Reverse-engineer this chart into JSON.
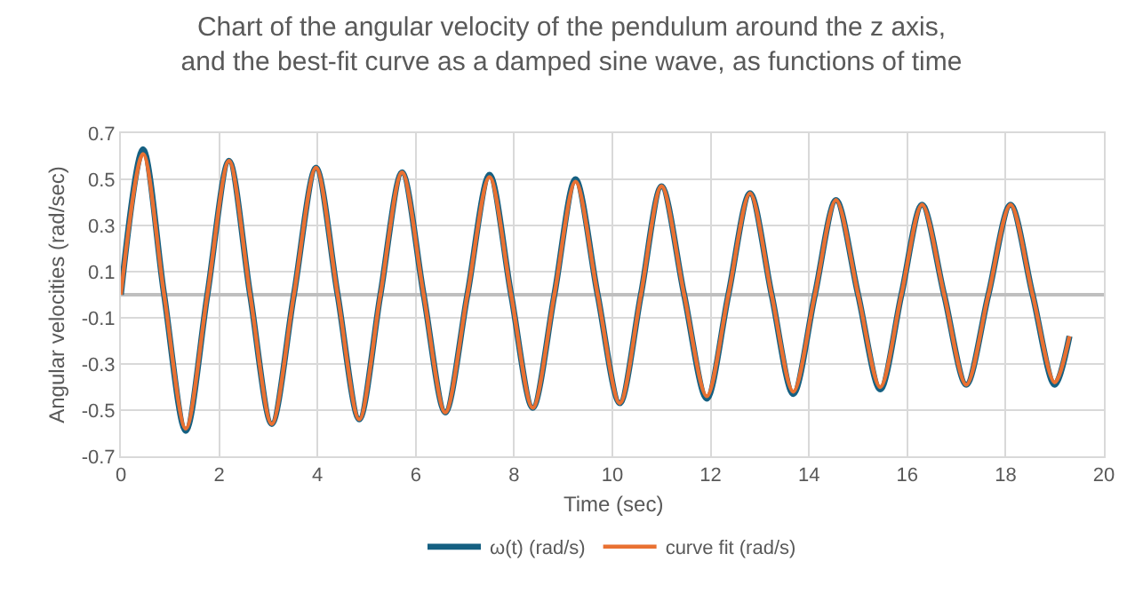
{
  "chart_data": {
    "type": "line",
    "title": "Chart of the angular velocity of the pendulum around the z axis,\nand the best-fit curve as a damped sine wave, as functions of time",
    "xlabel": "Time (sec)",
    "ylabel": "Angular velocities (rad/sec)",
    "x": [
      0,
      0.45,
      0.88,
      1.32,
      1.76,
      2.2,
      2.63,
      3.07,
      3.52,
      3.97,
      4.41,
      4.85,
      5.28,
      5.72,
      6.16,
      6.6,
      7.05,
      7.5,
      7.94,
      8.38,
      8.82,
      9.25,
      9.7,
      10.15,
      10.58,
      11.0,
      11.46,
      11.92,
      12.36,
      12.8,
      13.24,
      13.68,
      14.12,
      14.55,
      15.0,
      15.45,
      15.88,
      16.3,
      16.75,
      17.2,
      17.65,
      18.1,
      18.55,
      19.0,
      19.3
    ],
    "series": [
      {
        "name": "ω(t) (rad/s)",
        "color": "#156082",
        "values": [
          0,
          0.63,
          0,
          -0.59,
          0,
          0.58,
          0,
          -0.56,
          0,
          0.55,
          0,
          -0.54,
          0,
          0.53,
          0,
          -0.51,
          0,
          0.52,
          0,
          -0.49,
          0,
          0.5,
          0,
          -0.47,
          0,
          0.47,
          0,
          -0.45,
          0,
          0.44,
          0,
          -0.43,
          0,
          0.41,
          0,
          -0.41,
          0,
          0.39,
          0,
          -0.39,
          0,
          0.39,
          0,
          -0.39,
          -0.18
        ]
      },
      {
        "name": "curve fit (rad/s)",
        "color": "#e97132",
        "values": [
          0,
          0.61,
          0,
          -0.58,
          0,
          0.58,
          0,
          -0.56,
          0,
          0.55,
          0,
          -0.54,
          0,
          0.53,
          0,
          -0.51,
          0,
          0.51,
          0,
          -0.49,
          0,
          0.49,
          0,
          -0.47,
          0,
          0.47,
          0,
          -0.44,
          0,
          0.44,
          0,
          -0.42,
          0,
          0.41,
          0,
          -0.4,
          0,
          0.39,
          0,
          -0.39,
          0,
          0.39,
          0,
          -0.38,
          -0.18
        ]
      }
    ],
    "xlim": [
      0,
      20
    ],
    "xticks": [
      0,
      2,
      4,
      6,
      8,
      10,
      12,
      14,
      16,
      18,
      20
    ],
    "ylim": [
      -0.7,
      0.7
    ],
    "yticks": [
      -0.7,
      -0.5,
      -0.3,
      -0.1,
      0.1,
      0.3,
      0.5,
      0.7
    ],
    "grid": true,
    "legend": "bottom",
    "marker": "none",
    "line_style": "solid"
  }
}
